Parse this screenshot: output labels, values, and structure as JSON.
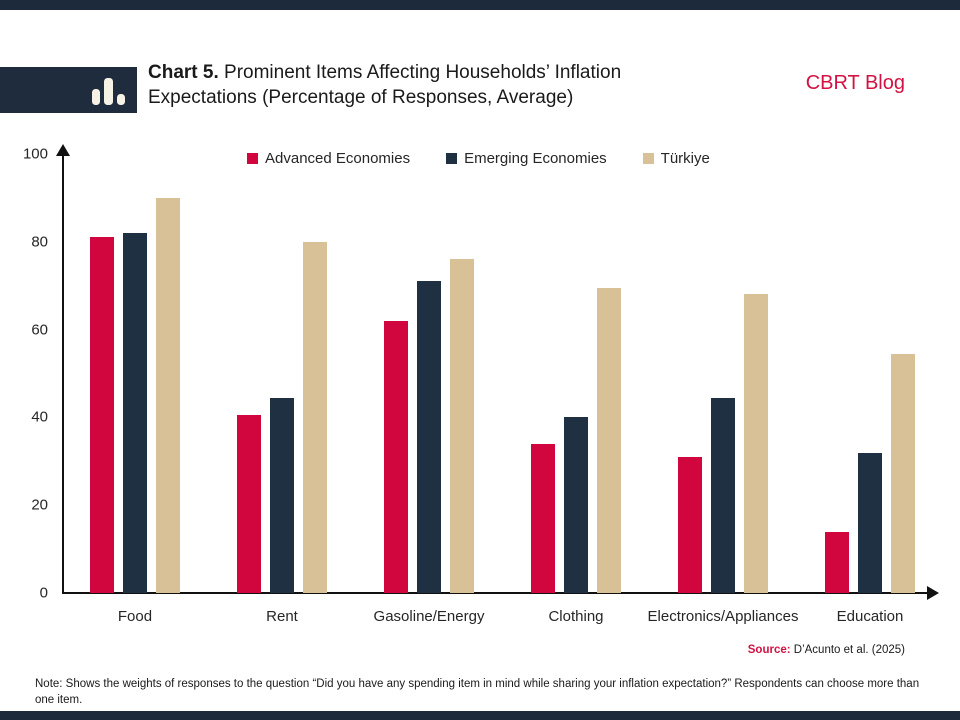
{
  "header": {
    "title_prefix": "Chart 5.",
    "title_rest": " Prominent Items Affecting Households’ Inflation Expectations (Percentage of Responses, Average)",
    "brand": "CBRT Blog",
    "logo_icon": "bar-chart-icon"
  },
  "colors": {
    "advanced_red": "#d2063e",
    "emerging_navy": "#1f3042",
    "turkiye_tan": "#d8c196",
    "brand_red": "#d31243",
    "edge_bar_navy": "#1c2a3b",
    "axis_black": "#111111"
  },
  "chart_data": {
    "type": "bar",
    "title": "Chart 5. Prominent Items Affecting Households’ Inflation Expectations (Percentage of Responses, Average)",
    "categories": [
      "Food",
      "Rent",
      "Gasoline/Energy",
      "Clothing",
      "Electronics/Appliances",
      "Education"
    ],
    "series": [
      {
        "name": "Advanced Economies",
        "color": "#d2063e",
        "values": [
          81,
          40.5,
          62,
          34,
          31,
          14
        ]
      },
      {
        "name": "Emerging Economies",
        "color": "#1f3042",
        "values": [
          82,
          44.5,
          71,
          40,
          44.5,
          32
        ]
      },
      {
        "name": "Türkiye",
        "color": "#d8c196",
        "values": [
          90,
          80,
          76,
          69.5,
          68,
          54.5
        ]
      }
    ],
    "ylabel": "",
    "xlabel": "",
    "ylim": [
      0,
      100
    ],
    "yticks": [
      0,
      20,
      40,
      60,
      80,
      100
    ],
    "grid": false,
    "legend_position": "top"
  },
  "footer": {
    "source_label": "Source:",
    "source_text": " D’Acunto et al. (2025)",
    "note": "Note: Shows the weights of responses to the question “Did you have any spending item in mind while sharing your inflation expectation?” Respondents can choose more than one item."
  }
}
